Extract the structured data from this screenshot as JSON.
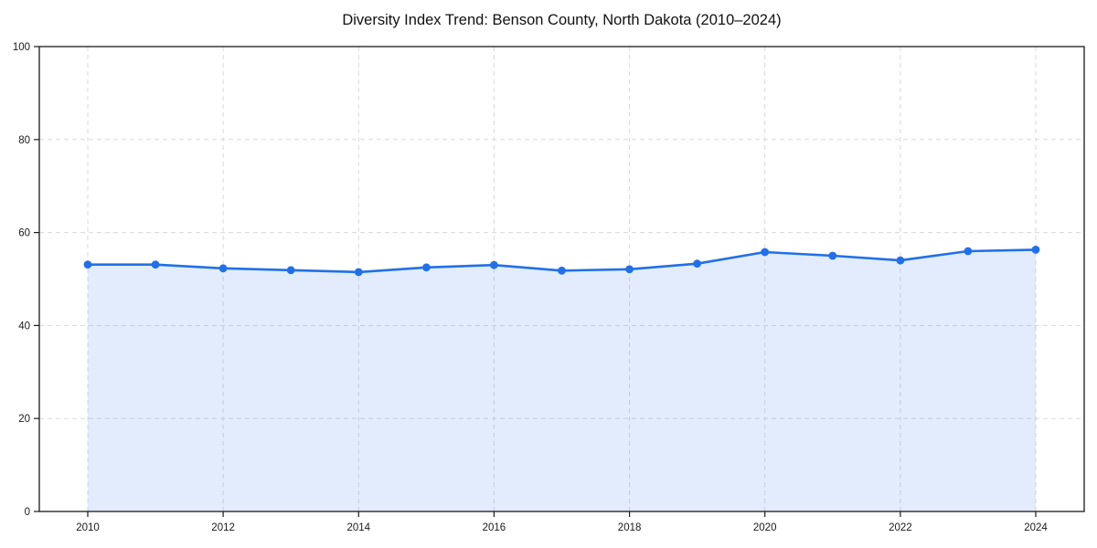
{
  "title": "Diversity Index Trend: Benson County, North Dakota (2010–2024)",
  "colors": {
    "line": "#2170e8",
    "marker": "#2170e8",
    "area_fill": "rgba(33,112,232,0.13)",
    "gridline": "#d9d9d9",
    "spine": "#1a1a1a",
    "tick_label": "#1a1a1a",
    "title_text": "#111111",
    "background": "#ffffff"
  },
  "chart_data": {
    "type": "line",
    "title": "Diversity Index Trend: Benson County, North Dakota (2010–2024)",
    "xlabel": "",
    "ylabel": "",
    "x": [
      2010,
      2011,
      2012,
      2013,
      2014,
      2015,
      2016,
      2017,
      2018,
      2019,
      2020,
      2021,
      2022,
      2023,
      2024
    ],
    "series": [
      {
        "name": "Diversity Index",
        "values": [
          53.1,
          53.1,
          52.3,
          51.9,
          51.5,
          52.5,
          53.0,
          51.8,
          52.1,
          53.3,
          55.8,
          55.0,
          54.0,
          56.0,
          56.3
        ]
      }
    ],
    "xticks": [
      2010,
      2012,
      2014,
      2016,
      2018,
      2020,
      2022,
      2024
    ],
    "yticks": [
      0,
      20,
      40,
      60,
      80,
      100
    ],
    "ylim": [
      0,
      100
    ],
    "grid": true,
    "grid_style": "dashed",
    "legend_position": "none",
    "area_fill": true,
    "marker": "circle"
  }
}
